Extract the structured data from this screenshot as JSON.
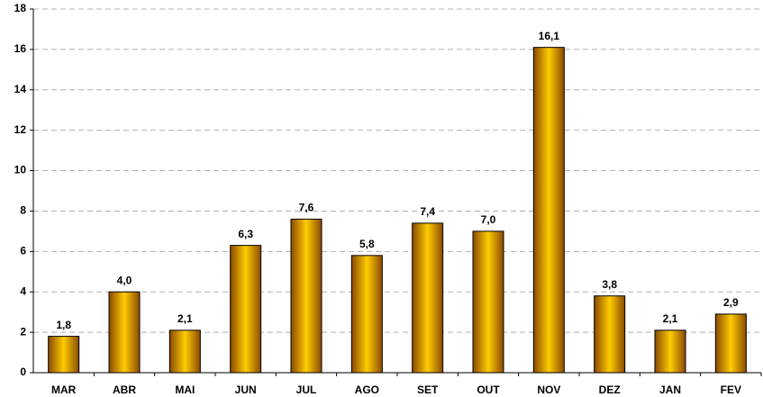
{
  "chart_data": {
    "type": "bar",
    "categories": [
      "MAR",
      "ABR",
      "MAI",
      "JUN",
      "JUL",
      "AGO",
      "SET",
      "OUT",
      "NOV",
      "DEZ",
      "JAN",
      "FEV"
    ],
    "values": [
      1.8,
      4.0,
      2.1,
      6.3,
      7.6,
      5.8,
      7.4,
      7.0,
      16.1,
      3.8,
      2.1,
      2.9
    ],
    "value_labels": [
      "1,8",
      "4,0",
      "2,1",
      "6,3",
      "7,6",
      "5,8",
      "7,4",
      "7,0",
      "16,1",
      "3,8",
      "2,1",
      "2,9"
    ],
    "color": "#ffcc00",
    "ylim": [
      0,
      18
    ],
    "yticks": [
      0,
      2,
      4,
      6,
      8,
      10,
      12,
      14,
      16,
      18
    ],
    "grid": true
  }
}
